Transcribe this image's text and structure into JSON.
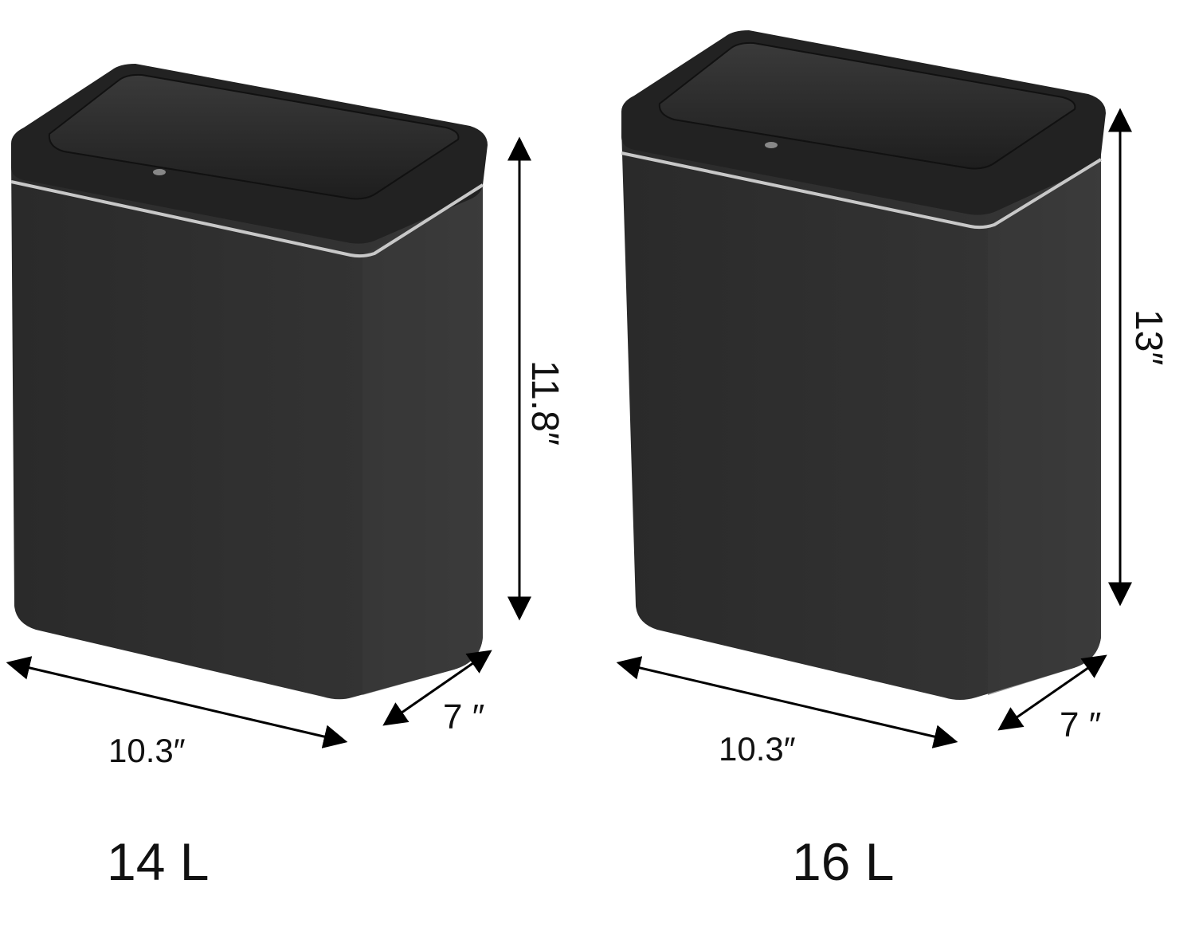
{
  "products": [
    {
      "capacity": "14 L",
      "width": "10.3″",
      "depth": "7 ″",
      "height": "11.8″"
    },
    {
      "capacity": "16 L",
      "width": "10.3″",
      "depth": "7 ″",
      "height": "13″"
    }
  ],
  "colors": {
    "bin_body": "#303030",
    "bin_lid": "#262626",
    "trim": "#c8c8c8",
    "arrow": "#000000"
  }
}
